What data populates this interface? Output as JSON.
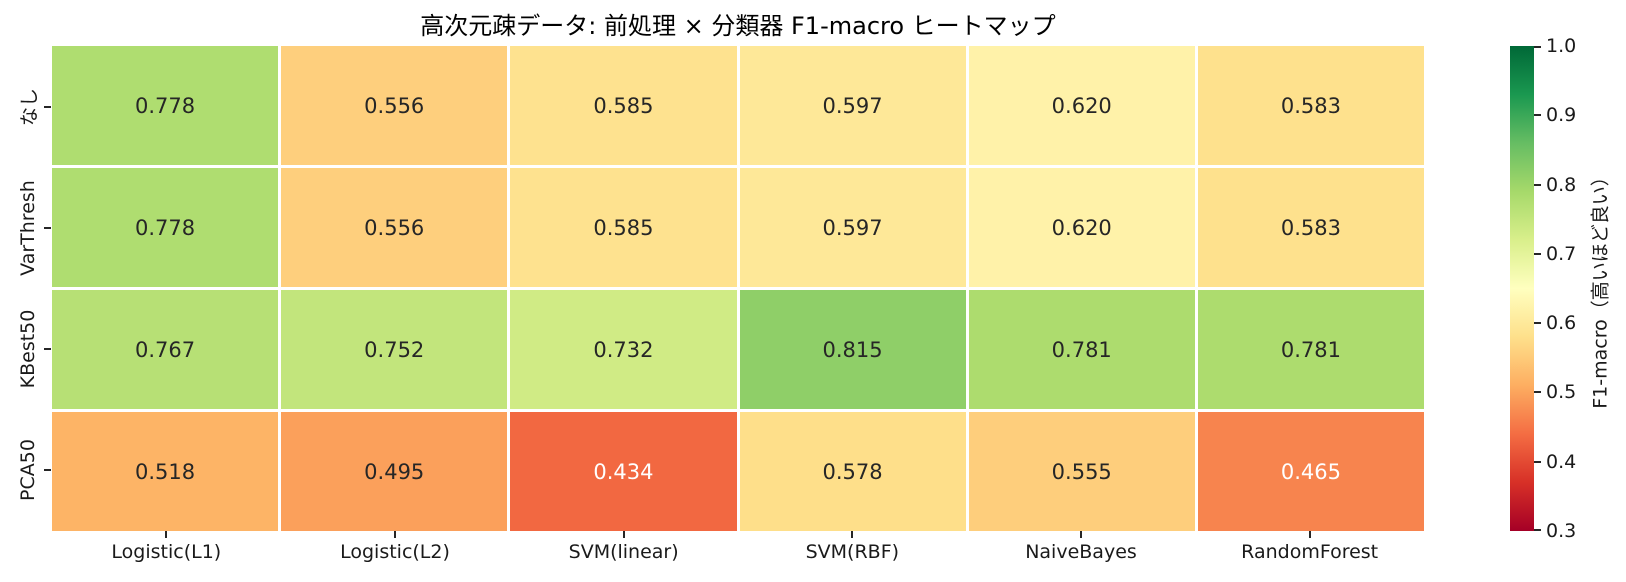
{
  "chart_data": {
    "type": "heatmap",
    "title": "高次元疎データ: 前処理 × 分類器 F1-macro ヒートマップ",
    "rows": [
      "なし",
      "VarThresh",
      "KBest50",
      "PCA50"
    ],
    "columns": [
      "Logistic(L1)",
      "Logistic(L2)",
      "SVM(linear)",
      "SVM(RBF)",
      "NaiveBayes",
      "RandomForest"
    ],
    "values": [
      [
        0.778,
        0.556,
        0.585,
        0.597,
        0.62,
        0.583
      ],
      [
        0.778,
        0.556,
        0.585,
        0.597,
        0.62,
        0.583
      ],
      [
        0.767,
        0.752,
        0.732,
        0.815,
        0.781,
        0.781
      ],
      [
        0.518,
        0.495,
        0.434,
        0.578,
        0.555,
        0.465
      ]
    ],
    "value_decimals": 3,
    "colormap": "RdYlGn",
    "vmin": 0.3,
    "vmax": 1.0,
    "annotation_colors": {
      "dark": "#262626",
      "light": "#ffffff"
    },
    "colorbar": {
      "ticks": [
        "1.0",
        "0.9",
        "0.8",
        "0.7",
        "0.6",
        "0.5",
        "0.4",
        "0.3"
      ],
      "label": "F1-macro（高いほど良い）"
    },
    "layout": {
      "legend_position": "right-colorbar",
      "grid": false
    }
  }
}
